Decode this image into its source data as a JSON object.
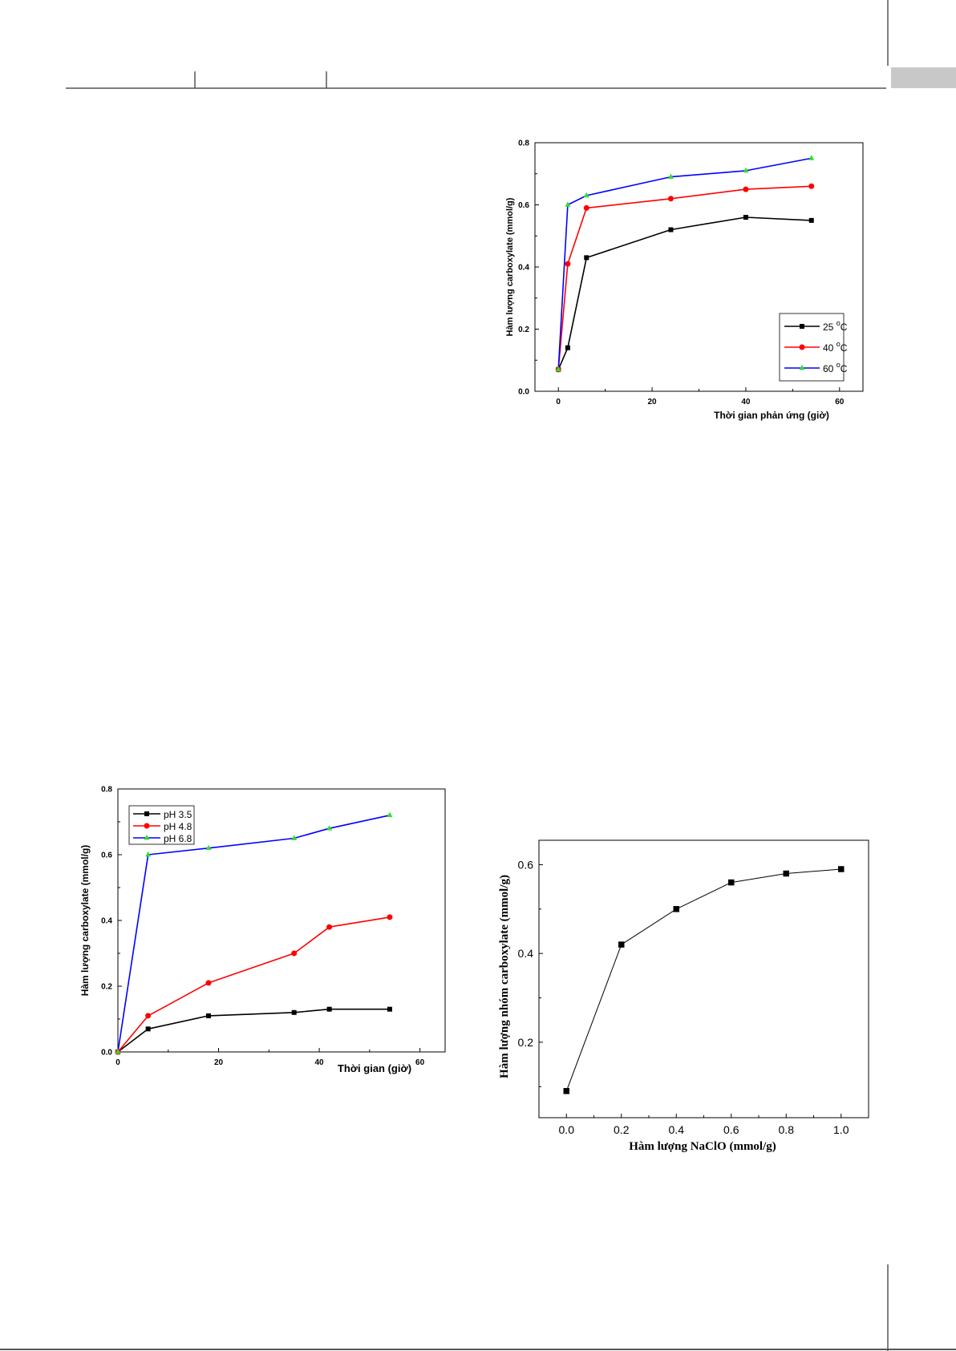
{
  "theme": {
    "line_color": "#555555",
    "header_tab_color": "#c8c8c8",
    "axis_color": "#000000"
  },
  "chart_data": [
    {
      "id": "temperature",
      "type": "line",
      "title": "",
      "xlabel": "Thời gian phản ứng (giờ)",
      "ylabel": "Hàm lượng carboxylate (mmol/g)",
      "xlim": [
        -5,
        65
      ],
      "ylim": [
        0,
        0.8
      ],
      "xticks": [
        "0",
        "20",
        "40",
        "60"
      ],
      "yticks": [
        "0.0",
        "0.2",
        "0.4",
        "0.6",
        "0.8"
      ],
      "grid": false,
      "legend_position": "bottom-right",
      "series": [
        {
          "name": "25 °C",
          "legend_base": "25 ",
          "legend_sup": "o",
          "legend_unit": "C",
          "color": "#000000",
          "marker": "square",
          "x": [
            0,
            2,
            6,
            24,
            40,
            54
          ],
          "y": [
            0.07,
            0.14,
            0.43,
            0.52,
            0.56,
            0.55
          ]
        },
        {
          "name": "40 °C",
          "legend_base": "40 ",
          "legend_sup": "o",
          "legend_unit": "C",
          "color": "#ff0000",
          "marker": "circle",
          "x": [
            0,
            2,
            6,
            24,
            40,
            54
          ],
          "y": [
            0.07,
            0.41,
            0.59,
            0.62,
            0.65,
            0.66
          ]
        },
        {
          "name": "60 °C",
          "legend_base": "60 ",
          "legend_sup": "o",
          "legend_unit": "C",
          "color": "#0000ff",
          "marker": "triangle",
          "marker_color": "#33dd33",
          "x": [
            0,
            2,
            6,
            24,
            40,
            54
          ],
          "y": [
            0.07,
            0.6,
            0.63,
            0.69,
            0.71,
            0.75
          ]
        }
      ]
    },
    {
      "id": "ph",
      "type": "line",
      "title": "",
      "xlabel": "Thời gian (giờ)",
      "ylabel": "Hàm lượng carboxylate (mmol/g)",
      "xlim": [
        0,
        65
      ],
      "ylim": [
        0,
        0.8
      ],
      "xticks": [
        "0",
        "20",
        "40",
        "60"
      ],
      "yticks": [
        "0.0",
        "0.2",
        "0.4",
        "0.6",
        "0.8"
      ],
      "grid": false,
      "legend_position": "top-left",
      "series": [
        {
          "name": "pH 3.5",
          "color": "#000000",
          "marker": "square",
          "x": [
            0,
            6,
            18,
            35,
            42,
            54
          ],
          "y": [
            0,
            0.07,
            0.11,
            0.12,
            0.13,
            0.13
          ]
        },
        {
          "name": "pH 4.8",
          "color": "#ff0000",
          "marker": "circle",
          "x": [
            0,
            6,
            18,
            35,
            42,
            54
          ],
          "y": [
            0,
            0.11,
            0.21,
            0.3,
            0.38,
            0.41
          ]
        },
        {
          "name": "pH 6.8",
          "color": "#0000ff",
          "marker": "triangle",
          "marker_color": "#33dd33",
          "x": [
            0,
            6,
            18,
            35,
            42,
            54
          ],
          "y": [
            0,
            0.6,
            0.62,
            0.65,
            0.68,
            0.72
          ]
        }
      ]
    },
    {
      "id": "naclo",
      "type": "line",
      "title": "",
      "xlabel": "Hàm lượng NaClO (mmol/g)",
      "ylabel": "Hàm lượng nhóm carboxylate (mmol/g)",
      "xlim": [
        -0.1,
        1.1
      ],
      "ylim": [
        0.03,
        0.655
      ],
      "xticks": [
        "0.0",
        "0.2",
        "0.4",
        "0.6",
        "0.8",
        "1.0"
      ],
      "yticks": [
        "0.2",
        "0.4",
        "0.6"
      ],
      "grid": false,
      "series": [
        {
          "color": "#000000",
          "marker": "square",
          "x": [
            0.0,
            0.2,
            0.4,
            0.6,
            0.8,
            1.0
          ],
          "y": [
            0.09,
            0.42,
            0.5,
            0.56,
            0.58,
            0.59
          ]
        }
      ]
    }
  ]
}
